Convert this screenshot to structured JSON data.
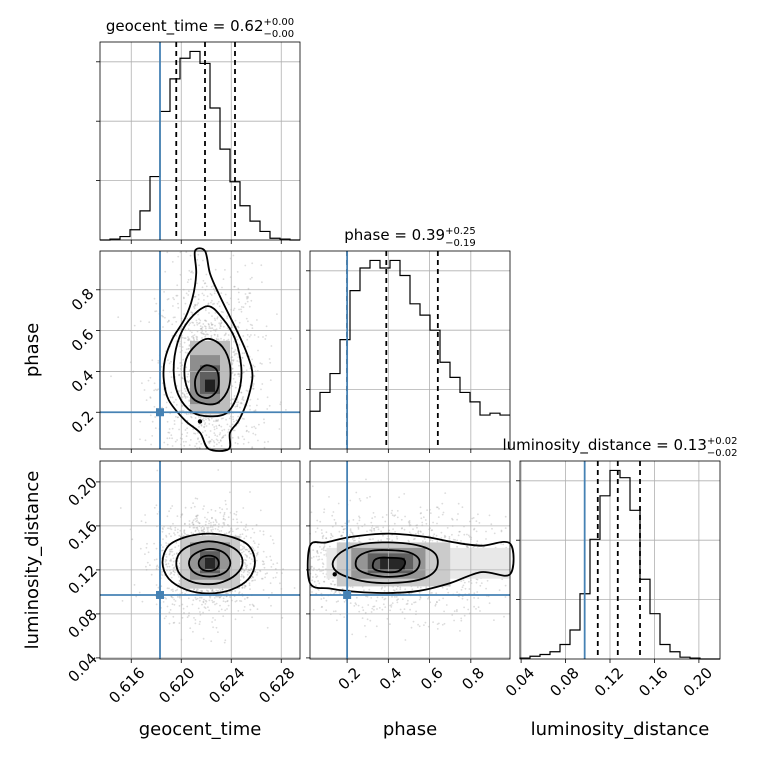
{
  "chart_data": {
    "type": "corner",
    "parameters": [
      {
        "key": "geocent_time",
        "label": "geocent_time",
        "title_prefix": "geocent_time = 0.62",
        "title_sup": "+0.00",
        "title_sub": "−0.00",
        "range": [
          0.6135,
          0.6295
        ],
        "ticks": [
          0.616,
          0.62,
          0.624,
          0.628
        ],
        "tick_labels": [
          "0.616",
          "0.620",
          "0.624",
          "0.628"
        ],
        "truth": 0.6183,
        "quantiles": [
          0.6196,
          0.6219,
          0.6243
        ],
        "hist_edges": [
          0.6135,
          0.6143,
          0.6151,
          0.6159,
          0.6167,
          0.6175,
          0.6183,
          0.6191,
          0.6199,
          0.6207,
          0.6215,
          0.6223,
          0.6231,
          0.6239,
          0.6247,
          0.6255,
          0.6263,
          0.6271,
          0.6279,
          0.6287,
          0.6295
        ],
        "hist_counts": [
          0,
          0.5,
          2,
          6,
          17,
          37,
          75,
          94,
          106,
          110,
          103,
          77,
          53,
          34,
          20,
          11,
          5,
          1,
          0.5,
          0
        ]
      },
      {
        "key": "phase",
        "label": "phase",
        "title_prefix": "phase = 0.39",
        "title_sup": "+0.25",
        "title_sub": "−0.19",
        "range": [
          0.02,
          0.99
        ],
        "ticks": [
          0.2,
          0.4,
          0.6,
          0.8
        ],
        "tick_labels": [
          "0.2",
          "0.4",
          "0.6",
          "0.8"
        ],
        "truth": 0.2,
        "quantiles": [
          0.2,
          0.39,
          0.64
        ],
        "hist_edges": [
          0.02,
          0.0685,
          0.117,
          0.1655,
          0.214,
          0.2625,
          0.311,
          0.3595,
          0.408,
          0.4565,
          0.505,
          0.5535,
          0.602,
          0.6505,
          0.699,
          0.7475,
          0.796,
          0.8445,
          0.893,
          0.9415,
          0.99
        ],
        "hist_counts": [
          20,
          30,
          40,
          58,
          84,
          96,
          100,
          96,
          100,
          92,
          77,
          71,
          63,
          46,
          38,
          30,
          25,
          18,
          19,
          18
        ]
      },
      {
        "key": "luminosity_distance",
        "label": "luminosity_distance",
        "title_prefix": "luminosity_distance = 0.13",
        "title_sup": "+0.02",
        "title_sub": "−0.02",
        "range": [
          0.039,
          0.219
        ],
        "ticks": [
          0.04,
          0.08,
          0.12,
          0.16,
          0.2
        ],
        "tick_labels": [
          "0.04",
          "0.08",
          "0.12",
          "0.16",
          "0.20"
        ],
        "truth": 0.0972,
        "quantiles": [
          0.109,
          0.127,
          0.147
        ],
        "hist_edges": [
          0.039,
          0.048,
          0.057,
          0.066,
          0.075,
          0.084,
          0.093,
          0.102,
          0.111,
          0.12,
          0.129,
          0.138,
          0.147,
          0.156,
          0.165,
          0.174,
          0.183,
          0.192,
          0.201,
          0.21,
          0.219
        ],
        "hist_counts": [
          0.5,
          1.5,
          2.5,
          4,
          8,
          16,
          36,
          66,
          90,
          104,
          100,
          82,
          44,
          25,
          8,
          4,
          1,
          0.5,
          0,
          0
        ]
      }
    ],
    "panels_2d": [
      {
        "x": "geocent_time",
        "y": "phase",
        "peak": [
          0.6222,
          0.33
        ],
        "density_cells": [
          {
            "x0": 0.6207,
            "x1": 0.6239,
            "y0": 0.19,
            "y1": 0.55,
            "level": 0.28
          },
          {
            "x0": 0.6207,
            "x1": 0.6231,
            "y0": 0.24,
            "y1": 0.48,
            "level": 0.48
          },
          {
            "x0": 0.6215,
            "x1": 0.6231,
            "y0": 0.29,
            "y1": 0.43,
            "level": 0.68
          },
          {
            "x0": 0.6219,
            "x1": 0.6227,
            "y0": 0.3,
            "y1": 0.36,
            "level": 0.95
          }
        ],
        "contours": [
          [
            [
              0.6219,
              0.99
            ],
            [
              0.6223,
              0.88
            ],
            [
              0.623,
              0.78
            ],
            [
              0.6238,
              0.68
            ],
            [
              0.6246,
              0.58
            ],
            [
              0.6253,
              0.48
            ],
            [
              0.6257,
              0.38
            ],
            [
              0.6253,
              0.26
            ],
            [
              0.6246,
              0.16
            ],
            [
              0.6239,
              0.1
            ],
            [
              0.6238,
              0.02
            ],
            [
              0.6222,
              0.02
            ],
            [
              0.6215,
              0.1
            ],
            [
              0.6203,
              0.16
            ],
            [
              0.619,
              0.26
            ],
            [
              0.6186,
              0.36
            ],
            [
              0.6187,
              0.46
            ],
            [
              0.6193,
              0.56
            ],
            [
              0.6203,
              0.66
            ],
            [
              0.6209,
              0.76
            ],
            [
              0.6212,
              0.88
            ],
            [
              0.6211,
              0.99
            ]
          ],
          [
            [
              0.6221,
              0.72
            ],
            [
              0.6233,
              0.66
            ],
            [
              0.6243,
              0.56
            ],
            [
              0.6248,
              0.42
            ],
            [
              0.6246,
              0.3
            ],
            [
              0.6237,
              0.2
            ],
            [
              0.6223,
              0.18
            ],
            [
              0.6209,
              0.2
            ],
            [
              0.6198,
              0.28
            ],
            [
              0.6194,
              0.4
            ],
            [
              0.6197,
              0.54
            ],
            [
              0.6206,
              0.65
            ]
          ],
          [
            [
              0.6222,
              0.56
            ],
            [
              0.6233,
              0.52
            ],
            [
              0.6239,
              0.43
            ],
            [
              0.6238,
              0.32
            ],
            [
              0.623,
              0.25
            ],
            [
              0.622,
              0.24
            ],
            [
              0.6209,
              0.27
            ],
            [
              0.6203,
              0.36
            ],
            [
              0.6204,
              0.46
            ],
            [
              0.6212,
              0.53
            ]
          ],
          [
            [
              0.622,
              0.43
            ],
            [
              0.6228,
              0.41
            ],
            [
              0.623,
              0.35
            ],
            [
              0.6228,
              0.3
            ],
            [
              0.6221,
              0.27
            ],
            [
              0.6213,
              0.29
            ],
            [
              0.6211,
              0.35
            ],
            [
              0.6214,
              0.4
            ]
          ]
        ],
        "islands": [
          [
            0.6215,
            0.155
          ]
        ]
      },
      {
        "x": "geocent_time",
        "y": "luminosity_distance",
        "peak": [
          0.6222,
          0.127
        ],
        "density_cells": [
          {
            "x0": 0.6199,
            "x1": 0.6247,
            "y0": 0.103,
            "y1": 0.151,
            "level": 0.22
          },
          {
            "x0": 0.6207,
            "x1": 0.6239,
            "y0": 0.111,
            "y1": 0.145,
            "level": 0.45
          },
          {
            "x0": 0.6215,
            "x1": 0.6231,
            "y0": 0.117,
            "y1": 0.137,
            "level": 0.68
          },
          {
            "x0": 0.6219,
            "x1": 0.6227,
            "y0": 0.121,
            "y1": 0.131,
            "level": 0.92
          }
        ],
        "contours": [
          [
            [
              0.6222,
              0.153
            ],
            [
              0.624,
              0.15
            ],
            [
              0.6254,
              0.142
            ],
            [
              0.6259,
              0.127
            ],
            [
              0.6254,
              0.112
            ],
            [
              0.624,
              0.102
            ],
            [
              0.6222,
              0.0985
            ],
            [
              0.6204,
              0.102
            ],
            [
              0.619,
              0.112
            ],
            [
              0.6185,
              0.127
            ],
            [
              0.619,
              0.142
            ],
            [
              0.6204,
              0.15
            ]
          ],
          [
            [
              0.6222,
              0.146
            ],
            [
              0.6236,
              0.143
            ],
            [
              0.6246,
              0.136
            ],
            [
              0.6249,
              0.126
            ],
            [
              0.6244,
              0.116
            ],
            [
              0.6233,
              0.109
            ],
            [
              0.6222,
              0.107
            ],
            [
              0.6209,
              0.109
            ],
            [
              0.6199,
              0.116
            ],
            [
              0.6196,
              0.127
            ],
            [
              0.62,
              0.137
            ],
            [
              0.6209,
              0.143
            ]
          ],
          [
            [
              0.6222,
              0.139
            ],
            [
              0.6232,
              0.137
            ],
            [
              0.6238,
              0.131
            ],
            [
              0.6239,
              0.124
            ],
            [
              0.6234,
              0.117
            ],
            [
              0.6224,
              0.114
            ],
            [
              0.6213,
              0.116
            ],
            [
              0.6207,
              0.122
            ],
            [
              0.6207,
              0.13
            ],
            [
              0.6213,
              0.136
            ]
          ],
          [
            [
              0.6222,
              0.133
            ],
            [
              0.6228,
              0.131
            ],
            [
              0.623,
              0.126
            ],
            [
              0.6228,
              0.121
            ],
            [
              0.6222,
              0.119
            ],
            [
              0.6216,
              0.121
            ],
            [
              0.6214,
              0.126
            ],
            [
              0.6216,
              0.131
            ]
          ]
        ],
        "islands": []
      },
      {
        "x": "phase",
        "y": "luminosity_distance",
        "peak": [
          0.42,
          0.125
        ],
        "density_cells": [
          {
            "x0": 0.1,
            "x1": 0.99,
            "y0": 0.112,
            "y1": 0.14,
            "level": 0.1
          },
          {
            "x0": 0.15,
            "x1": 0.7,
            "y0": 0.105,
            "y1": 0.145,
            "level": 0.22
          },
          {
            "x0": 0.22,
            "x1": 0.58,
            "y0": 0.112,
            "y1": 0.14,
            "level": 0.45
          },
          {
            "x0": 0.3,
            "x1": 0.52,
            "y0": 0.117,
            "y1": 0.135,
            "level": 0.68
          },
          {
            "x0": 0.36,
            "x1": 0.48,
            "y0": 0.12,
            "y1": 0.131,
            "level": 0.92
          }
        ],
        "contours": [
          [
            [
              0.02,
              0.142
            ],
            [
              0.1,
              0.145
            ],
            [
              0.22,
              0.15
            ],
            [
              0.4,
              0.153
            ],
            [
              0.58,
              0.15
            ],
            [
              0.72,
              0.145
            ],
            [
              0.85,
              0.142
            ],
            [
              0.99,
              0.144
            ],
            [
              0.99,
              0.116
            ],
            [
              0.85,
              0.118
            ],
            [
              0.7,
              0.108
            ],
            [
              0.55,
              0.101
            ],
            [
              0.4,
              0.099
            ],
            [
              0.25,
              0.1
            ],
            [
              0.12,
              0.103
            ],
            [
              0.02,
              0.108
            ]
          ],
          [
            [
              0.4,
              0.145
            ],
            [
              0.55,
              0.142
            ],
            [
              0.63,
              0.134
            ],
            [
              0.63,
              0.12
            ],
            [
              0.55,
              0.111
            ],
            [
              0.4,
              0.108
            ],
            [
              0.27,
              0.11
            ],
            [
              0.16,
              0.117
            ],
            [
              0.13,
              0.126
            ],
            [
              0.17,
              0.136
            ],
            [
              0.26,
              0.143
            ]
          ],
          [
            [
              0.4,
              0.138
            ],
            [
              0.5,
              0.136
            ],
            [
              0.55,
              0.129
            ],
            [
              0.53,
              0.119
            ],
            [
              0.44,
              0.114
            ],
            [
              0.33,
              0.115
            ],
            [
              0.25,
              0.121
            ],
            [
              0.25,
              0.131
            ],
            [
              0.31,
              0.137
            ]
          ],
          [
            [
              0.41,
              0.131
            ],
            [
              0.47,
              0.13
            ],
            [
              0.48,
              0.125
            ],
            [
              0.45,
              0.119
            ],
            [
              0.39,
              0.118
            ],
            [
              0.33,
              0.121
            ],
            [
              0.33,
              0.128
            ],
            [
              0.36,
              0.131
            ]
          ]
        ],
        "islands": [
          [
            0.14,
            0.116
          ]
        ]
      }
    ]
  }
}
